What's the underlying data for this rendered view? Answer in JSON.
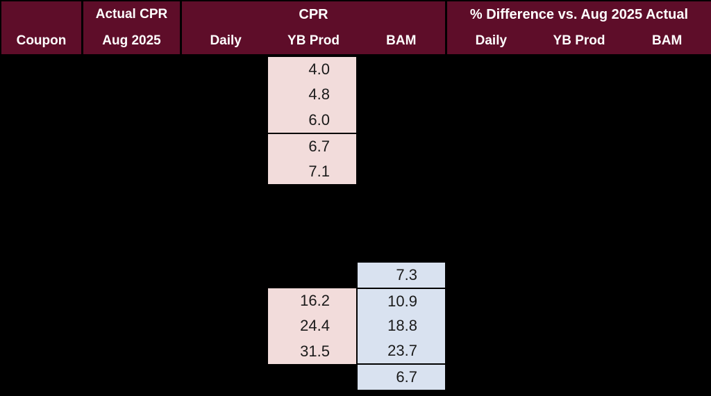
{
  "colors": {
    "header-bg": "#5E0D29",
    "header-text": "#FFFFFF",
    "pink-fill": "#F2DCDB",
    "blue-fill": "#D9E2F0",
    "cell-text": "#1A1A1A",
    "background": "#000000"
  },
  "header": {
    "coupon": "Coupon",
    "actual_cpr": {
      "line1": "Actual CPR",
      "line2": "Aug 2025"
    },
    "cpr_group": {
      "title": "CPR",
      "cols": [
        "Daily",
        "YB Prod",
        "BAM"
      ]
    },
    "diff_group": {
      "title": "% Difference vs. Aug 2025 Actual",
      "cols": [
        "Daily",
        "YB Prod",
        "BAM"
      ]
    }
  },
  "blocks": {
    "cpr_yb_prod_upper": {
      "values": [
        "4.0",
        "4.8",
        "6.0",
        "6.7",
        "7.1"
      ]
    },
    "cpr_yb_prod_lower": {
      "values": [
        "16.2",
        "24.4",
        "31.5"
      ]
    },
    "cpr_bam": {
      "values": [
        "7.3",
        "10.9",
        "18.8",
        "23.7",
        "6.7"
      ]
    }
  },
  "chart_data": {
    "type": "table",
    "title": "CPR comparison vs. Aug 2025 Actual",
    "columns": [
      "Coupon",
      "Actual CPR Aug 2025",
      "CPR Daily",
      "CPR YB Prod",
      "CPR BAM",
      "% Difference Daily",
      "% Difference YB Prod",
      "% Difference BAM"
    ],
    "rows": [
      [
        "",
        "",
        "",
        "4.0",
        "",
        "",
        "",
        ""
      ],
      [
        "",
        "",
        "",
        "4.8",
        "",
        "",
        "",
        ""
      ],
      [
        "",
        "",
        "",
        "6.0",
        "",
        "",
        "",
        ""
      ],
      [
        "",
        "",
        "",
        "6.7",
        "",
        "",
        "",
        ""
      ],
      [
        "",
        "",
        "",
        "7.1",
        "",
        "",
        "",
        ""
      ],
      [
        "",
        "",
        "",
        "",
        "",
        "",
        "",
        ""
      ],
      [
        "",
        "",
        "",
        "",
        "",
        "",
        "",
        ""
      ],
      [
        "",
        "",
        "",
        "",
        "",
        "",
        "",
        ""
      ],
      [
        "",
        "",
        "",
        "",
        "7.3",
        "",
        "",
        ""
      ],
      [
        "",
        "",
        "",
        "16.2",
        "10.9",
        "",
        "",
        ""
      ],
      [
        "",
        "",
        "",
        "24.4",
        "18.8",
        "",
        "",
        ""
      ],
      [
        "",
        "",
        "",
        "31.5",
        "23.7",
        "",
        "",
        ""
      ],
      [
        "",
        "",
        "",
        "",
        "6.7",
        "",
        "",
        ""
      ]
    ]
  }
}
